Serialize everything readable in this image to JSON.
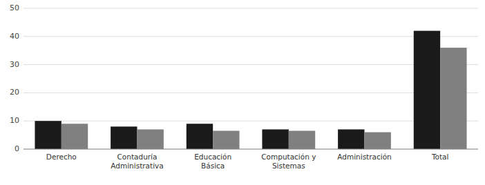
{
  "chart_data": {
    "type": "bar",
    "categories": [
      "Derecho",
      "Contaduría\nAdministrativa",
      "Educación\nBásica",
      "Computación y\nSistemas",
      "Administración",
      "Total"
    ],
    "series": [
      {
        "color": "#1a1a1a",
        "values": [
          10,
          8,
          9,
          7,
          7,
          42
        ]
      },
      {
        "color": "#808080",
        "values": [
          9,
          7,
          6.5,
          6.5,
          6,
          36
        ]
      }
    ],
    "ylim": [
      0,
      50
    ],
    "yticks": [
      0,
      10,
      20,
      30,
      40,
      50
    ],
    "grid": true
  }
}
